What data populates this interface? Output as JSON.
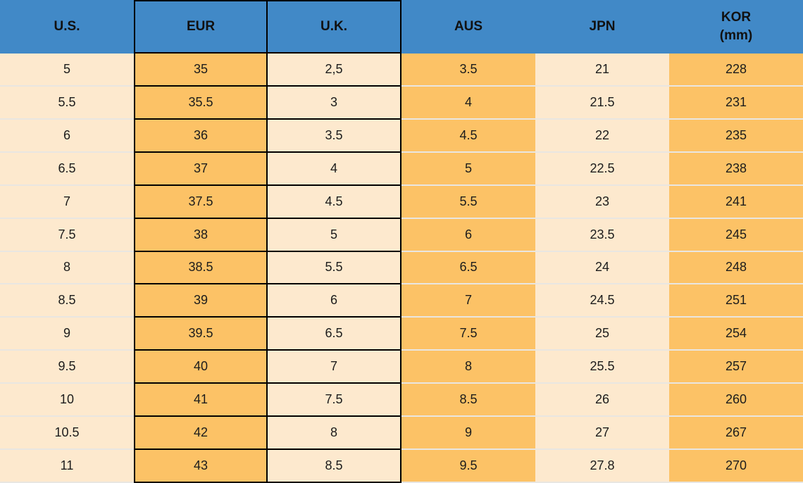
{
  "colors": {
    "header_bg": "#4189c7",
    "header_text": "#111111",
    "text": "#1c1c1c",
    "orange": "#fcc266",
    "cream": "#fde9ce",
    "row_divider": "#e9e6e1",
    "black_border": "#000000"
  },
  "table": {
    "columns": [
      {
        "label": "U.S."
      },
      {
        "label": "EUR"
      },
      {
        "label": "U.K."
      },
      {
        "label": "AUS"
      },
      {
        "label": "JPN"
      },
      {
        "label": "KOR",
        "sublabel": "(mm)"
      }
    ],
    "rows": [
      [
        "5",
        "35",
        "2,5",
        "3.5",
        "21",
        "228"
      ],
      [
        "5.5",
        "35.5",
        "3",
        "4",
        "21.5",
        "231"
      ],
      [
        "6",
        "36",
        "3.5",
        "4.5",
        "22",
        "235"
      ],
      [
        "6.5",
        "37",
        "4",
        "5",
        "22.5",
        "238"
      ],
      [
        "7",
        "37.5",
        "4.5",
        "5.5",
        "23",
        "241"
      ],
      [
        "7.5",
        "38",
        "5",
        "6",
        "23.5",
        "245"
      ],
      [
        "8",
        "38.5",
        "5.5",
        "6.5",
        "24",
        "248"
      ],
      [
        "8.5",
        "39",
        "6",
        "7",
        "24.5",
        "251"
      ],
      [
        "9",
        "39.5",
        "6.5",
        "7.5",
        "25",
        "254"
      ],
      [
        "9.5",
        "40",
        "7",
        "8",
        "25.5",
        "257"
      ],
      [
        "10",
        "41",
        "7.5",
        "8.5",
        "26",
        "260"
      ],
      [
        "10.5",
        "42",
        "8",
        "9",
        "27",
        "267"
      ],
      [
        "11",
        "43",
        "8.5",
        "9.5",
        "27.8",
        "270"
      ]
    ]
  },
  "chart_data": {
    "type": "table",
    "columns": [
      "U.S.",
      "EUR",
      "U.K.",
      "AUS",
      "JPN",
      "KOR (mm)"
    ],
    "rows": [
      [
        "5",
        "35",
        "2,5",
        "3.5",
        "21",
        "228"
      ],
      [
        "5.5",
        "35.5",
        "3",
        "4",
        "21.5",
        "231"
      ],
      [
        "6",
        "36",
        "3.5",
        "4.5",
        "22",
        "235"
      ],
      [
        "6.5",
        "37",
        "4",
        "5",
        "22.5",
        "238"
      ],
      [
        "7",
        "37.5",
        "4.5",
        "5.5",
        "23",
        "241"
      ],
      [
        "7.5",
        "38",
        "5",
        "6",
        "23.5",
        "245"
      ],
      [
        "8",
        "38.5",
        "5.5",
        "6.5",
        "24",
        "248"
      ],
      [
        "8.5",
        "39",
        "6",
        "7",
        "24.5",
        "251"
      ],
      [
        "9",
        "39.5",
        "6.5",
        "7.5",
        "25",
        "254"
      ],
      [
        "9.5",
        "40",
        "7",
        "8",
        "25.5",
        "257"
      ],
      [
        "10",
        "41",
        "7.5",
        "8.5",
        "26",
        "260"
      ],
      [
        "10.5",
        "42",
        "8",
        "9",
        "27",
        "267"
      ],
      [
        "11",
        "43",
        "8.5",
        "9.5",
        "27.8",
        "270"
      ]
    ],
    "layout_hints": {
      "header_bg": "#4189c7",
      "column_fill_pattern": [
        "cream",
        "orange",
        "cream",
        "orange",
        "cream",
        "orange"
      ],
      "black_bordered_columns": [
        "EUR",
        "U.K."
      ]
    }
  }
}
